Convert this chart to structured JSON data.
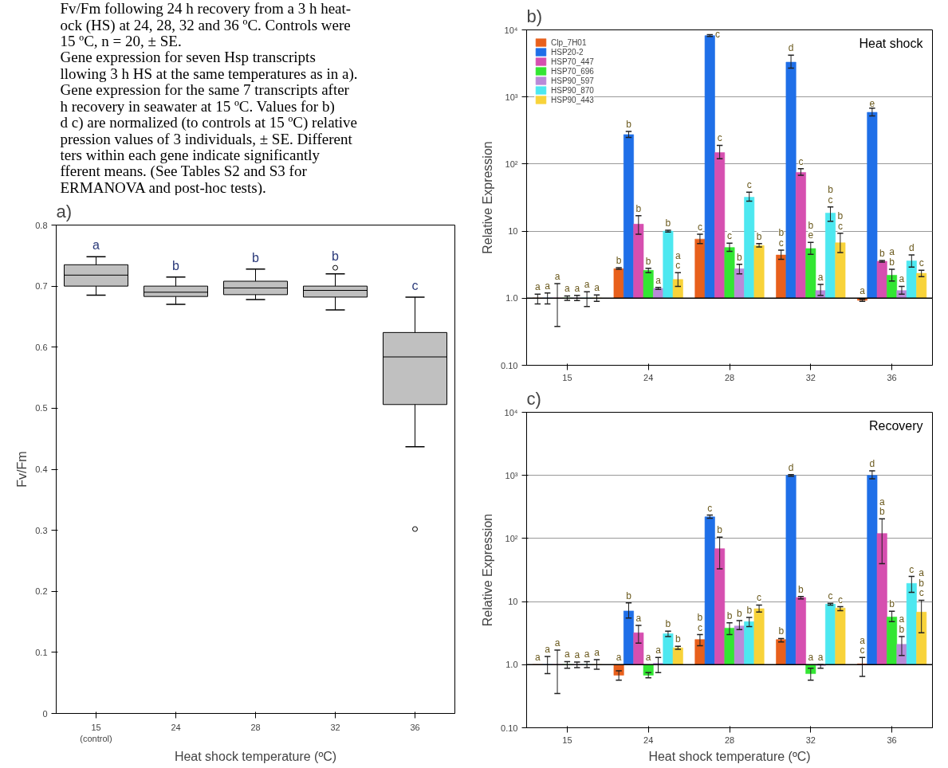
{
  "chart_data": [
    {
      "type": "other",
      "annotations": [
        "Fv/Fm following 24 h recovery from a 3 h heat-",
        "ock (HS) at 24, 28, 32 and 36 ºC. Controls were",
        "15 ºC, n = 20, ± SE.",
        "Gene expression for seven Hsp transcripts",
        "llowing 3 h HS at the same temperatures as in a).",
        "Gene expression for the same 7 transcripts after",
        "h recovery in seawater at 15 ºC. Values for b)",
        "d c) are normalized (to controls at 15 ºC) relative",
        "pression values of 3 individuals, ± SE. Different",
        "ters within each gene indicate significantly",
        "fferent means. (See Tables S2 and S3 for",
        "ERMANOVA and post-hoc tests)."
      ]
    },
    {
      "type": "box",
      "title": "a)",
      "xlabel": "Heat shock temperature (ºC)",
      "ylabel": "Fv/Fm",
      "categories": [
        "15\n(control)",
        "24",
        "28",
        "32",
        "36"
      ],
      "ylim": [
        0,
        0.8
      ],
      "yticks": [
        0,
        0.1,
        0.2,
        0.3,
        0.4,
        0.5,
        0.6,
        0.7,
        0.8
      ],
      "color": "#c0c0c0",
      "boxes": [
        {
          "low": 0.685,
          "q1": 0.7,
          "median": 0.718,
          "q3": 0.735,
          "high": 0.748
        },
        {
          "low": 0.67,
          "q1": 0.683,
          "median": 0.69,
          "q3": 0.7,
          "high": 0.715
        },
        {
          "low": 0.678,
          "q1": 0.686,
          "median": 0.697,
          "q3": 0.708,
          "high": 0.728
        },
        {
          "low": 0.661,
          "q1": 0.682,
          "median": 0.693,
          "q3": 0.7,
          "high": 0.72,
          "outliers": [
            0.73
          ]
        },
        {
          "low": 0.437,
          "q1": 0.506,
          "median": 0.584,
          "q3": 0.624,
          "high": 0.682,
          "outliers": [
            0.302
          ]
        }
      ],
      "annotations": [
        "a",
        "b",
        "b",
        "b",
        "c"
      ]
    },
    {
      "type": "bar",
      "title": "b)",
      "subtitle": "Heat shock",
      "ylabel": "Relative Expression",
      "categories": [
        "15",
        "24",
        "28",
        "32",
        "36"
      ],
      "log": true,
      "ylim": [
        0.1,
        10000
      ],
      "yticks": [
        {
          "value": 0.1,
          "label": "0.10"
        },
        {
          "value": 1,
          "label": "1.0"
        },
        10,
        {
          "value": 100,
          "label": "10²"
        },
        {
          "value": 1000,
          "label": "10³"
        },
        {
          "value": 10000,
          "label": "10⁴"
        }
      ],
      "grid": "y",
      "legend": "top left",
      "ref_lines": [
        {
          "axis": "y",
          "value": 1,
          "color": "#000000"
        }
      ],
      "series": [
        {
          "name": "Clp_7H01",
          "color": "#e8601c",
          "base": [
            1,
            1,
            1,
            1,
            1
          ],
          "values": [
            0,
            1.75,
            6.6,
            3.4,
            -0.07
          ],
          "errors": [
            [
              0.82,
              1.15
            ],
            [
              2.7,
              2.85
            ],
            [
              6.5,
              9
            ],
            [
              3.8,
              5.2
            ],
            [
              0.9,
              0.96
            ]
          ],
          "value_labels": [
            "a",
            "b",
            "c",
            "b\nc",
            "a"
          ]
        },
        {
          "name": "HSP20-2",
          "color": "#1f6fe8",
          "base": [
            1,
            1,
            1,
            1,
            1
          ],
          "values": [
            0,
            274,
            8199,
            3299,
            589
          ],
          "errors": [
            [
              0.82,
              1.2
            ],
            [
              250,
              305
            ],
            [
              8000,
              8500
            ],
            [
              2700,
              4200
            ],
            [
              520,
              680
            ]
          ],
          "value_labels": [
            "a",
            "b",
            "c",
            "d",
            "e"
          ]
        },
        {
          "name": "HSP70_447",
          "color": "#d64fb0",
          "base": [
            1,
            1,
            1,
            1,
            1
          ],
          "values": [
            0,
            11.7,
            147,
            74,
            2.55
          ],
          "errors": [
            [
              0.38,
              1.65
            ],
            [
              9,
              17
            ],
            [
              120,
              190
            ],
            [
              68,
              85
            ],
            [
              3.45,
              3.65
            ]
          ],
          "value_labels": [
            "a",
            "b",
            "c",
            "c",
            "b"
          ]
        },
        {
          "name": "HSP70_696",
          "color": "#33e633",
          "base": [
            1,
            1,
            1,
            1,
            1
          ],
          "values": [
            0,
            1.6,
            4.7,
            4.5,
            1.2
          ],
          "errors": [
            [
              0.93,
              1.08
            ],
            [
              2.4,
              2.8
            ],
            [
              5,
              6.6
            ],
            [
              4.5,
              6.8
            ],
            [
              1.8,
              2.7
            ]
          ],
          "value_labels": [
            "a",
            "b",
            "c",
            "b\ne",
            "a\nb"
          ]
        },
        {
          "name": "HSP90_597",
          "color": "#b98ad8",
          "base": [
            1,
            1,
            1,
            1,
            1
          ],
          "values": [
            0,
            0.4,
            1.75,
            0.3,
            0.3
          ],
          "errors": [
            [
              0.92,
              1.1
            ],
            [
              1.35,
              1.45
            ],
            [
              2.3,
              3.2
            ],
            [
              1.1,
              1.6
            ],
            [
              1.15,
              1.5
            ]
          ],
          "value_labels": [
            "a",
            "a",
            "b",
            "a",
            "a"
          ]
        },
        {
          "name": "HSP90_870",
          "color": "#4de8f0",
          "base": [
            1,
            1,
            1,
            1,
            1
          ],
          "values": [
            0,
            9,
            31,
            17.6,
            2.6
          ],
          "errors": [
            [
              0.75,
              1.25
            ],
            [
              9.7,
              10.3
            ],
            [
              28,
              38
            ],
            [
              14,
              23
            ],
            [
              2.9,
              4.4
            ]
          ],
          "value_labels": [
            "a",
            "b",
            "c",
            "b\nc",
            "d"
          ]
        },
        {
          "name": "HSP90_443",
          "color": "#f8d33a",
          "base": [
            1,
            1,
            1,
            1,
            1
          ],
          "values": [
            0,
            0.9,
            5.1,
            5.7,
            1.35
          ],
          "errors": [
            [
              0.9,
              1.12
            ],
            [
              1.5,
              2.4
            ],
            [
              5.8,
              6.5
            ],
            [
              4.8,
              9.3
            ],
            [
              2.1,
              2.6
            ]
          ],
          "value_labels": [
            "a",
            "a\nc",
            "b",
            "b\nc",
            "c"
          ]
        }
      ]
    },
    {
      "type": "bar",
      "title": "c)",
      "subtitle": "Recovery",
      "xlabel": "Heat shock temperature (ºC)",
      "ylabel": "Relative Expression",
      "categories": [
        "15",
        "24",
        "28",
        "32",
        "36"
      ],
      "log": true,
      "ylim": [
        0.1,
        10000
      ],
      "yticks": [
        {
          "value": 0.1,
          "label": "0.10"
        },
        {
          "value": 1,
          "label": "1.0"
        },
        10,
        {
          "value": 100,
          "label": "10²"
        },
        {
          "value": 1000,
          "label": "10³"
        },
        {
          "value": 10000,
          "label": "10⁴"
        }
      ],
      "grid": "y",
      "ref_lines": [
        {
          "axis": "y",
          "value": 1,
          "color": "#000000"
        }
      ],
      "series": [
        {
          "color": "#e8601c",
          "base": [
            1,
            1,
            1,
            1,
            1
          ],
          "values": [
            0,
            -0.32,
            1.5,
            1.5,
            0.03
          ],
          "errors": [
            null,
            [
              0.57,
              0.8
            ],
            [
              2,
              3
            ],
            [
              2.3,
              2.6
            ],
            [
              0.65,
              1.3
            ]
          ],
          "value_labels": [
            "a",
            "a",
            "b\nc",
            "b",
            "a\nc"
          ]
        },
        {
          "color": "#1f6fe8",
          "base": [
            1,
            1,
            1,
            1,
            1
          ],
          "values": [
            0,
            6.1,
            219,
            999,
            999
          ],
          "errors": [
            [
              0.72,
              1.35
            ],
            [
              5.5,
              9.5
            ],
            [
              210,
              235
            ],
            [
              970,
              1030
            ],
            [
              880,
              1180
            ]
          ],
          "value_labels": [
            "a",
            "b",
            "c",
            "d",
            "d"
          ]
        },
        {
          "color": "#d64fb0",
          "base": [
            1,
            1,
            1,
            1,
            1
          ],
          "values": [
            0,
            2.2,
            68,
            10.6,
            119
          ],
          "errors": [
            [
              0.35,
              1.7
            ],
            [
              2.2,
              4.2
            ],
            [
              33,
              105
            ],
            [
              11,
              12
            ],
            [
              40,
              205
            ]
          ],
          "value_labels": [
            "a",
            "a",
            "b",
            "b",
            "a\nb"
          ]
        },
        {
          "color": "#33e633",
          "base": [
            1,
            1,
            1,
            1,
            1
          ],
          "values": [
            0,
            -0.32,
            2.8,
            -0.28,
            4.7
          ],
          "errors": [
            [
              0.88,
              1.12
            ],
            [
              0.62,
              0.75
            ],
            [
              3,
              4.6
            ],
            [
              0.57,
              0.88
            ],
            [
              4.8,
              7
            ]
          ],
          "value_labels": [
            "a",
            "a",
            "b",
            "a",
            "b"
          ]
        },
        {
          "color": "#b98ad8",
          "base": [
            1,
            1,
            1,
            1,
            1
          ],
          "values": [
            0,
            0.05,
            3.1,
            -0.03,
            1.1
          ],
          "errors": [
            [
              0.9,
              1.1
            ],
            [
              0.75,
              1.3
            ],
            [
              3.6,
              5
            ],
            [
              0.88,
              1.0
            ],
            [
              1.4,
              2.8
            ]
          ],
          "value_labels": [
            "a",
            "a",
            "b",
            "a",
            "a\nb"
          ]
        },
        {
          "color": "#4de8f0",
          "base": [
            1,
            1,
            1,
            1,
            1
          ],
          "values": [
            0,
            2.1,
            3.8,
            8.1,
            18.4
          ],
          "errors": [
            [
              0.9,
              1.12
            ],
            [
              2.8,
              3.4
            ],
            [
              4,
              5.6
            ],
            [
              8.8,
              9.4
            ],
            [
              14,
              25
            ]
          ],
          "value_labels": [
            "a",
            "b",
            "b",
            "c",
            "c"
          ]
        },
        {
          "color": "#f8d33a",
          "base": [
            1,
            1,
            1,
            1,
            1
          ],
          "values": [
            0,
            0.85,
            6.7,
            6.9,
            5.8
          ],
          "errors": [
            [
              0.85,
              1.2
            ],
            [
              1.75,
              1.95
            ],
            [
              6.8,
              8.8
            ],
            [
              7.2,
              8.3
            ],
            [
              3.2,
              10.5
            ]
          ],
          "value_labels": [
            "a",
            "b",
            "c",
            "c",
            "a\nb\nc"
          ]
        }
      ]
    }
  ]
}
